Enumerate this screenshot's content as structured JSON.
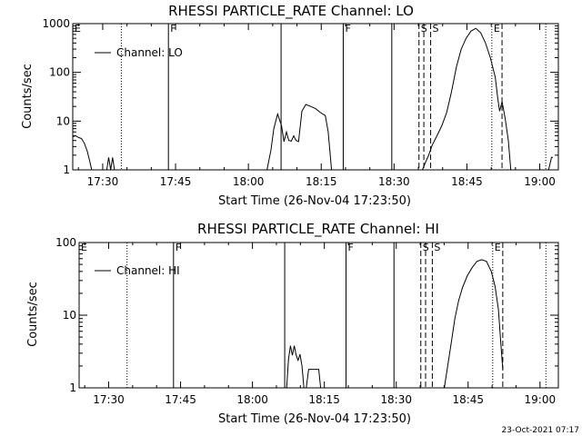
{
  "figure": {
    "timestamp": "23-Oct-2021 07:17"
  },
  "chart_data": [
    {
      "type": "line",
      "title": "RHESSI PARTICLE_RATE Channel: LO",
      "xlabel": "Start Time (26-Nov-04 17:23:50)",
      "ylabel": "Counts/sec",
      "yscale": "log",
      "ylim": [
        1,
        1000
      ],
      "yticks": [
        1,
        10,
        100,
        1000
      ],
      "ytick_labels": [
        "1",
        "10",
        "100",
        "1000"
      ],
      "x_unit": "minutes after 17:23:50",
      "xlim": [
        0,
        100
      ],
      "xticks": [
        6.17,
        21.17,
        36.17,
        51.17,
        66.17,
        81.17,
        96.17
      ],
      "xtick_labels": [
        "17:30",
        "17:45",
        "18:00",
        "18:15",
        "18:30",
        "18:45",
        "19:00"
      ],
      "legend": {
        "label": "Channel: LO",
        "position": "top-left"
      },
      "series": [
        {
          "name": "Channel: LO",
          "segments": [
            [
              [
                0,
                4.8
              ],
              [
                0.6,
                5.0
              ],
              [
                1.2,
                4.6
              ],
              [
                1.8,
                4.4
              ],
              [
                2.4,
                3.5
              ],
              [
                3.0,
                2.4
              ],
              [
                3.5,
                1.5
              ],
              [
                3.9,
                1.0
              ]
            ],
            [
              [
                7.0,
                1.0
              ],
              [
                7.4,
                1.8
              ],
              [
                7.8,
                1.0
              ],
              [
                8.2,
                1.8
              ],
              [
                8.6,
                1.0
              ]
            ],
            [
              [
                40.0,
                1.0
              ],
              [
                40.8,
                2.5
              ],
              [
                41.4,
                7.0
              ],
              [
                42.2,
                14.0
              ],
              [
                43.0,
                8.0
              ],
              [
                43.5,
                3.8
              ],
              [
                44.0,
                6.0
              ],
              [
                44.5,
                4.0
              ],
              [
                45.0,
                3.9
              ],
              [
                45.5,
                5.0
              ],
              [
                46.0,
                4.0
              ],
              [
                46.5,
                3.8
              ],
              [
                47.2,
                16.0
              ],
              [
                48.0,
                22.0
              ],
              [
                49.0,
                20.0
              ],
              [
                50.0,
                18.0
              ],
              [
                51.0,
                15.0
              ],
              [
                52.0,
                13.0
              ],
              [
                52.6,
                6.0
              ],
              [
                53.3,
                1.0
              ]
            ],
            [
              [
                72.0,
                1.0
              ],
              [
                72.6,
                1.4
              ],
              [
                73.3,
                2.0
              ],
              [
                74.0,
                3.2
              ],
              [
                75.0,
                5.0
              ],
              [
                76.0,
                8.0
              ],
              [
                77.0,
                15.0
              ],
              [
                78.0,
                40.0
              ],
              [
                79.0,
                130.0
              ],
              [
                80.0,
                300.0
              ],
              [
                81.0,
                500.0
              ],
              [
                82.0,
                700.0
              ],
              [
                83.0,
                800.0
              ],
              [
                84.0,
                650.0
              ],
              [
                85.0,
                400.0
              ],
              [
                86.0,
                200.0
              ],
              [
                87.0,
                80.0
              ],
              [
                87.5,
                30.0
              ],
              [
                87.9,
                16.0
              ],
              [
                88.4,
                25.0
              ],
              [
                89.0,
                12.0
              ],
              [
                89.7,
                4.0
              ],
              [
                90.2,
                1.0
              ]
            ],
            [
              [
                98.0,
                1.0
              ],
              [
                98.6,
                1.8
              ],
              [
                98.9,
                1.8
              ]
            ]
          ]
        }
      ],
      "vlines": [
        {
          "x": 0,
          "style": "solid",
          "label": "E"
        },
        {
          "x": 10.0,
          "style": "dotted",
          "label": ""
        },
        {
          "x": 19.7,
          "style": "solid",
          "label": "F"
        },
        {
          "x": 42.9,
          "style": "solid",
          "label": ""
        },
        {
          "x": 55.7,
          "style": "solid",
          "label": "F"
        },
        {
          "x": 65.7,
          "style": "solid",
          "label": ""
        },
        {
          "x": 71.3,
          "style": "dashed",
          "label": "S"
        },
        {
          "x": 72.3,
          "style": "dashed",
          "label": ""
        },
        {
          "x": 73.7,
          "style": "dashed",
          "label": "S"
        },
        {
          "x": 86.3,
          "style": "dotted",
          "label": "E"
        },
        {
          "x": 88.4,
          "style": "dashed",
          "label": ""
        },
        {
          "x": 97.4,
          "style": "dotted",
          "label": ""
        }
      ]
    },
    {
      "type": "line",
      "title": "RHESSI PARTICLE_RATE Channel: HI",
      "xlabel": "Start Time (26-Nov-04 17:23:50)",
      "ylabel": "Counts/sec",
      "yscale": "log",
      "ylim": [
        1,
        100
      ],
      "yticks": [
        1,
        10,
        100
      ],
      "ytick_labels": [
        "1",
        "10",
        "100"
      ],
      "x_unit": "minutes after 17:23:50",
      "xlim": [
        0,
        100
      ],
      "xticks": [
        6.17,
        21.17,
        36.17,
        51.17,
        66.17,
        81.17,
        96.17
      ],
      "xtick_labels": [
        "17:30",
        "17:45",
        "18:00",
        "18:15",
        "18:30",
        "18:45",
        "19:00"
      ],
      "legend": {
        "label": "Channel: HI",
        "position": "top-left"
      },
      "series": [
        {
          "name": "Channel: HI",
          "segments": [
            [
              [
                43.3,
                1.0
              ],
              [
                43.7,
                2.5
              ],
              [
                44.1,
                3.8
              ],
              [
                44.5,
                2.8
              ],
              [
                44.9,
                3.8
              ],
              [
                45.3,
                2.8
              ],
              [
                45.7,
                2.4
              ],
              [
                46.1,
                2.9
              ],
              [
                46.5,
                2.0
              ],
              [
                46.9,
                1.0
              ]
            ],
            [
              [
                47.4,
                1.0
              ],
              [
                47.9,
                1.8
              ],
              [
                48.6,
                1.8
              ],
              [
                49.3,
                1.8
              ],
              [
                50.0,
                1.8
              ],
              [
                50.4,
                1.0
              ]
            ],
            [
              [
                76.2,
                1.0
              ],
              [
                76.9,
                2.0
              ],
              [
                77.6,
                4.0
              ],
              [
                78.4,
                9.0
              ],
              [
                79.2,
                16.0
              ],
              [
                80.0,
                24.0
              ],
              [
                81.0,
                35.0
              ],
              [
                82.0,
                45.0
              ],
              [
                83.0,
                55.0
              ],
              [
                84.0,
                58.0
              ],
              [
                85.0,
                55.0
              ],
              [
                86.0,
                40.0
              ],
              [
                86.8,
                25.0
              ],
              [
                87.5,
                12.0
              ],
              [
                88.0,
                4.0
              ],
              [
                88.4,
                1.8
              ]
            ]
          ]
        }
      ],
      "vlines": [
        {
          "x": 0,
          "style": "solid",
          "label": "E"
        },
        {
          "x": 10.0,
          "style": "dotted",
          "label": ""
        },
        {
          "x": 19.7,
          "style": "solid",
          "label": "F"
        },
        {
          "x": 42.9,
          "style": "solid",
          "label": ""
        },
        {
          "x": 55.7,
          "style": "solid",
          "label": "F"
        },
        {
          "x": 65.7,
          "style": "solid",
          "label": ""
        },
        {
          "x": 71.3,
          "style": "dashed",
          "label": "S"
        },
        {
          "x": 72.3,
          "style": "dashed",
          "label": ""
        },
        {
          "x": 73.7,
          "style": "dashed",
          "label": "S"
        },
        {
          "x": 86.3,
          "style": "dotted",
          "label": "E"
        },
        {
          "x": 88.4,
          "style": "dashed",
          "label": ""
        },
        {
          "x": 97.4,
          "style": "dotted",
          "label": ""
        }
      ]
    }
  ]
}
